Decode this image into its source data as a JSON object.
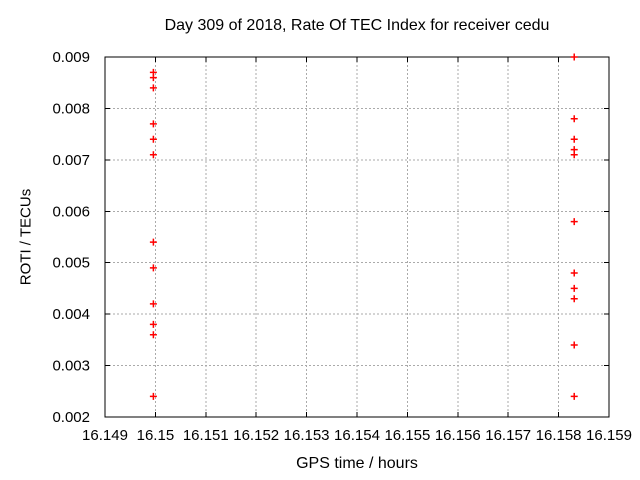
{
  "chart_data": {
    "type": "scatter",
    "title": "Day 309 of 2018, Rate Of TEC Index for receiver cedu",
    "xlabel": "GPS time / hours",
    "ylabel": "ROTI / TECUs",
    "xlim": [
      16.149,
      16.159
    ],
    "ylim": [
      0.002,
      0.009
    ],
    "grid": {
      "show": true,
      "color": "#aaaaaa",
      "dash": "2,2"
    },
    "legend": "none",
    "marker": {
      "shape": "plus",
      "color": "#ff0000",
      "size": 7,
      "stroke_width": 1.5
    },
    "colors": {
      "axis": "#000000",
      "text": "#000000",
      "background": "#ffffff"
    },
    "x_ticks": [
      {
        "value": 16.149,
        "label": "16.149"
      },
      {
        "value": 16.15,
        "label": "16.15"
      },
      {
        "value": 16.151,
        "label": "16.151"
      },
      {
        "value": 16.152,
        "label": "16.152"
      },
      {
        "value": 16.153,
        "label": "16.153"
      },
      {
        "value": 16.154,
        "label": "16.154"
      },
      {
        "value": 16.155,
        "label": "16.155"
      },
      {
        "value": 16.156,
        "label": "16.156"
      },
      {
        "value": 16.157,
        "label": "16.157"
      },
      {
        "value": 16.158,
        "label": "16.158"
      },
      {
        "value": 16.159,
        "label": "16.159"
      }
    ],
    "y_ticks": [
      {
        "value": 0.002,
        "label": "0.002"
      },
      {
        "value": 0.003,
        "label": "0.003"
      },
      {
        "value": 0.004,
        "label": "0.004"
      },
      {
        "value": 0.005,
        "label": "0.005"
      },
      {
        "value": 0.006,
        "label": "0.006"
      },
      {
        "value": 0.007,
        "label": "0.007"
      },
      {
        "value": 0.008,
        "label": "0.008"
      },
      {
        "value": 0.009,
        "label": "0.009"
      }
    ],
    "series": [
      {
        "name": "ROTI",
        "marker": "plus",
        "color": "#ff0000",
        "points": [
          [
            16.14996,
            0.0087
          ],
          [
            16.14996,
            0.0086
          ],
          [
            16.14996,
            0.0084
          ],
          [
            16.14996,
            0.0077
          ],
          [
            16.14996,
            0.0074
          ],
          [
            16.14996,
            0.0071
          ],
          [
            16.14996,
            0.0054
          ],
          [
            16.14996,
            0.0049
          ],
          [
            16.14996,
            0.0042
          ],
          [
            16.14996,
            0.0038
          ],
          [
            16.14996,
            0.0036
          ],
          [
            16.14996,
            0.0024
          ],
          [
            16.15831,
            0.009
          ],
          [
            16.15831,
            0.0078
          ],
          [
            16.15831,
            0.0074
          ],
          [
            16.15831,
            0.0072
          ],
          [
            16.15831,
            0.0071
          ],
          [
            16.15831,
            0.0058
          ],
          [
            16.15831,
            0.0048
          ],
          [
            16.15831,
            0.0045
          ],
          [
            16.15831,
            0.0043
          ],
          [
            16.15831,
            0.0034
          ],
          [
            16.15831,
            0.0024
          ]
        ]
      }
    ]
  }
}
